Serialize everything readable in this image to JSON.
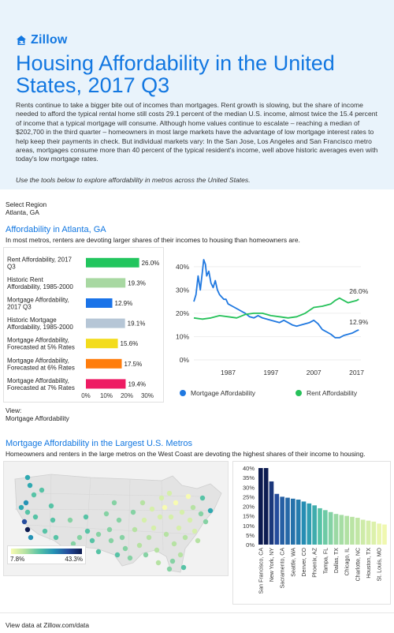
{
  "header": {
    "brand": "Zillow",
    "title": "Housing Affordability in the United States, 2017 Q3",
    "intro": "Rents continue to take a bigger bite out of incomes than mortgages. Rent growth is slowing, but the share of income needed to afford the typical rental home still costs 29.1 percent of the median U.S. income, almost twice the 15.4 percent of income that a typical mortgage will consume. Although home values continue to escalate – reaching a median of $202,700 in the third quarter – homeowners in most large markets have the advantage of low mortgage interest rates to help keep their payments in check. But individual markets vary: In the San Jose, Los Angeles and San Francisco metro areas, mortgages consume more than 40 percent of the typical resident's income, well above historic averages even with today's low mortgage rates.",
    "tools_note": "Use the tools below to explore affordability in metros across the United States."
  },
  "controls": {
    "select_label": "Select Region",
    "select_value": "Atlanta, GA",
    "view_label": "View:",
    "view_value": "Mortgage Affordability"
  },
  "section1": {
    "title": "Affordability in Atlanta, GA",
    "subtitle": "In most metros, renters are devoting larger shares of their incomes to housing than homeowners are."
  },
  "section2": {
    "title": "Mortgage Affordability in the Largest U.S. Metros",
    "subtitle": "Homeowners and renters in the large metros on the West Coast are devoting the highest shares of their income to housing."
  },
  "footer": {
    "text": "View data at Zillow.com/data"
  },
  "colors": {
    "brand": "#1277e1",
    "header_bg": "#e9f3fb",
    "mortgage": "#1f78e0",
    "rent": "#26c15a"
  },
  "chart_data": [
    {
      "type": "bar",
      "orientation": "horizontal",
      "categories": [
        "Rent Affordability, 2017 Q3",
        "Historic Rent Affordability, 1985-2000",
        "Mortgage Affordability, 2017 Q3",
        "Historic Mortgage Affordability, 1985-2000",
        "Mortgage Affordability, Forecasted at 5% Rates",
        "Mortgage Affordability, Forecasted at 6% Rates",
        "Mortgage Affordability, Forecasted at 7% Rates"
      ],
      "values": [
        26.0,
        19.3,
        12.9,
        19.1,
        15.6,
        17.5,
        19.4
      ],
      "value_labels": [
        "26.0%",
        "19.3%",
        "12.9%",
        "19.1%",
        "15.6%",
        "17.5%",
        "19.4%"
      ],
      "colors": [
        "#22c55e",
        "#a8d8a2",
        "#1a73e8",
        "#b6c6d6",
        "#f3dc1c",
        "#ff7d0d",
        "#ee1b63"
      ],
      "xlim": [
        0,
        30
      ],
      "xticks": [
        0,
        10,
        20,
        30
      ],
      "xtick_labels": [
        "0%",
        "10%",
        "20%",
        "30%"
      ]
    },
    {
      "type": "line",
      "xlim": [
        1979,
        2018
      ],
      "ylim": [
        0,
        44
      ],
      "xticks": [
        1987,
        1997,
        2007,
        2017
      ],
      "xtick_labels": [
        "1987",
        "1997",
        "2007",
        "2017"
      ],
      "yticks": [
        0,
        10,
        20,
        30,
        40
      ],
      "ytick_labels": [
        "0%",
        "10%",
        "20%",
        "30%",
        "40%"
      ],
      "legend": "bottom",
      "end_labels": [
        "26.0%",
        "12.9%"
      ],
      "series": [
        {
          "name": "Mortgage Affordability",
          "color": "#1f78e0",
          "x": [
            1979,
            1979.5,
            1980,
            1980.5,
            1981,
            1981.3,
            1981.7,
            1982,
            1982.5,
            1983,
            1983.5,
            1984,
            1984.5,
            1985,
            1985.5,
            1986,
            1986.5,
            1987,
            1988,
            1989,
            1990,
            1991,
            1992,
            1993,
            1994,
            1995,
            1996,
            1997,
            1998,
            1999,
            2000,
            2001,
            2002,
            2003,
            2004,
            2005,
            2006,
            2007,
            2008,
            2009,
            2010,
            2011,
            2012,
            2013,
            2014,
            2015,
            2016,
            2017,
            2017.5
          ],
          "y": [
            25,
            28,
            36,
            30,
            38,
            43,
            41,
            36,
            38,
            33,
            31,
            34,
            30,
            28,
            27,
            26,
            26,
            24,
            23,
            22,
            21,
            20,
            18.5,
            18,
            19,
            18,
            17.5,
            17,
            16.5,
            16,
            17,
            16,
            15,
            14.5,
            15,
            15.5,
            16,
            17,
            15.5,
            13,
            12,
            11,
            9.5,
            9.5,
            10.5,
            11,
            11.5,
            12.5,
            12.9
          ]
        },
        {
          "name": "Rent Affordability",
          "color": "#26c15a",
          "x": [
            1979,
            1981,
            1983,
            1985,
            1987,
            1989,
            1991,
            1993,
            1995,
            1997,
            1999,
            2001,
            2003,
            2005,
            2007,
            2009,
            2011,
            2012,
            2013,
            2014,
            2015,
            2016,
            2017,
            2017.5
          ],
          "y": [
            18,
            17.5,
            18,
            19,
            18.5,
            18,
            19.5,
            20,
            20,
            19,
            18.5,
            18,
            18.5,
            20,
            22.5,
            23,
            24,
            25.5,
            26.5,
            25.5,
            24.5,
            25,
            25.5,
            26.0
          ]
        }
      ]
    },
    {
      "type": "map",
      "legend_min": "7.8%",
      "legend_max": "43.3%",
      "colormap": [
        "#f7fbb1",
        "#b6e2a3",
        "#57c3a6",
        "#2593b5",
        "#264d9e",
        "#0c1a4f"
      ]
    },
    {
      "type": "bar",
      "categories": [
        "San Francisco, CA",
        "",
        "New York, NY",
        "",
        "Sacramento, CA",
        "",
        "Seattle, WA",
        "",
        "Denver, CO",
        "",
        "Phoenix, AZ",
        "",
        "Tampa, FL",
        "",
        "Dallas, TX",
        "",
        "Chicago, IL",
        "",
        "Charlotte, NC",
        "",
        "Houston, TX",
        "",
        "St. Louis, MO",
        ""
      ],
      "values": [
        42,
        41.5,
        33,
        26.5,
        25,
        24.5,
        24,
        23.5,
        22.5,
        21.5,
        20.5,
        19,
        18,
        17,
        16,
        15.5,
        15,
        14.5,
        14,
        13,
        12.5,
        12,
        11,
        10.5
      ],
      "ylim": [
        0,
        40
      ],
      "yticks": [
        0,
        5,
        10,
        15,
        20,
        25,
        30,
        35,
        40
      ],
      "ytick_labels": [
        "0%",
        "5%",
        "10%",
        "15%",
        "20%",
        "25%",
        "30%",
        "35%",
        "40%"
      ]
    }
  ]
}
